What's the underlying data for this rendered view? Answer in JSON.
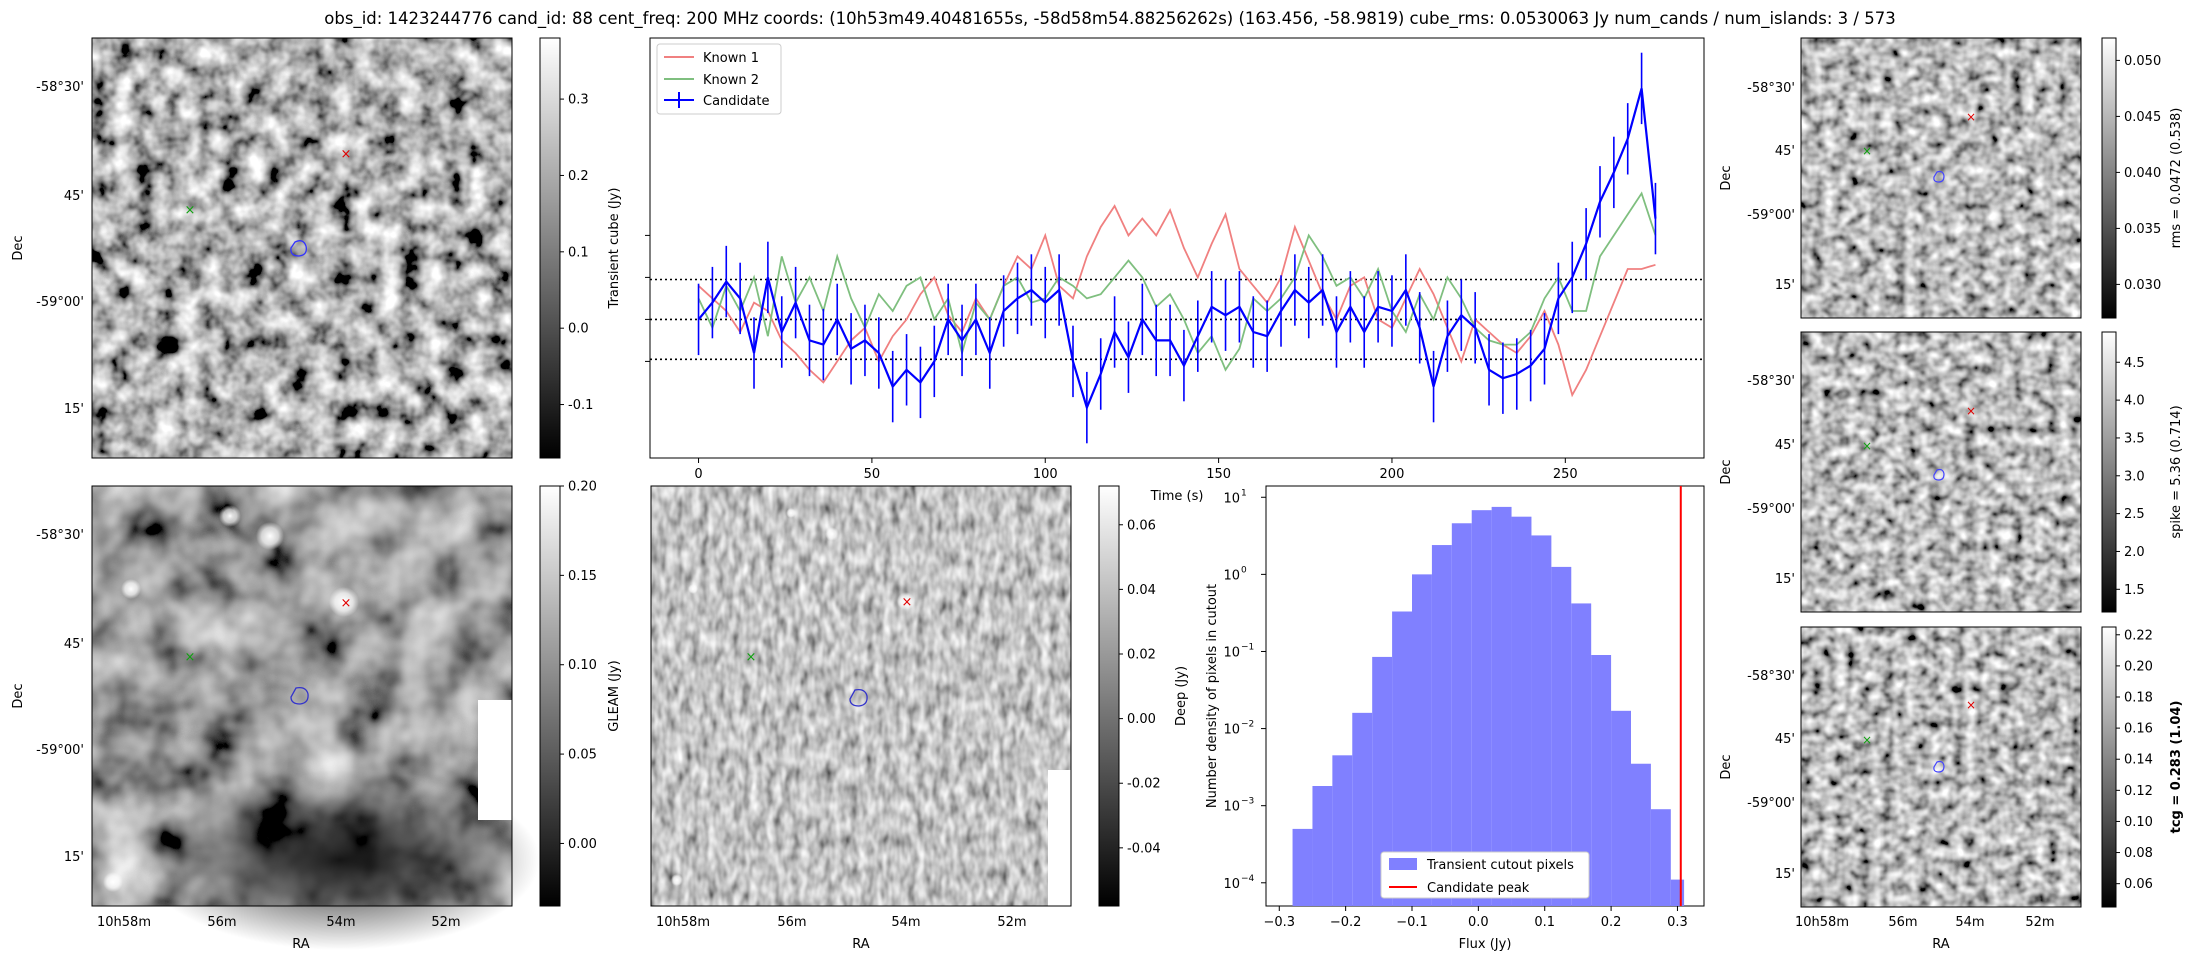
{
  "figure_title": "obs_id: 1423244776 cand_id: 88 cent_freq: 200 MHz coords: (10h53m49.40481655s, -58d58m54.88256262s) (163.456, -58.9819) cube_rms: 0.0530063 Jy num_cands / num_islands: 3 / 573",
  "ra_ticks": [
    "10h58m",
    "56m",
    "54m",
    "52m"
  ],
  "dec_ticks": [
    "-58°30'",
    "45'",
    "-59°00'",
    "15'"
  ],
  "ra_label": "RA",
  "dec_label": "Dec",
  "colors": {
    "candidate": "#0000ff",
    "known1": "#f08080",
    "known2": "#7fbf7f",
    "hist_fill": "#8080ff",
    "peak_line": "#ff0000"
  },
  "image_panels": [
    {
      "id": "transient",
      "colorbar_label": "Transient cube (Jy)",
      "colorbar_ticks": [
        "0.3",
        "0.2",
        "0.1",
        "0.0",
        "-0.1"
      ],
      "colorbar_range": [
        -0.17,
        0.38
      ]
    },
    {
      "id": "gleam",
      "colorbar_label": "GLEAM (Jy)",
      "colorbar_ticks": [
        "0.20",
        "0.15",
        "0.10",
        "0.05",
        "0.00"
      ],
      "colorbar_range": [
        -0.035,
        0.2
      ]
    },
    {
      "id": "deep",
      "colorbar_label": "Deep (Jy)",
      "colorbar_ticks": [
        "0.06",
        "0.04",
        "0.02",
        "0.00",
        "-0.02",
        "-0.04"
      ],
      "colorbar_range": [
        -0.058,
        0.072
      ]
    },
    {
      "id": "rms",
      "colorbar_label": "rms = 0.0472 (0.538)",
      "colorbar_ticks": [
        "0.050",
        "0.045",
        "0.040",
        "0.035",
        "0.030"
      ],
      "colorbar_range": [
        0.027,
        0.052
      ]
    },
    {
      "id": "spike",
      "colorbar_label": "spike = 5.36 (0.714)",
      "colorbar_ticks": [
        "4.5",
        "4.0",
        "3.5",
        "3.0",
        "2.5",
        "2.0",
        "1.5"
      ],
      "colorbar_range": [
        1.2,
        4.9
      ]
    },
    {
      "id": "tcg",
      "colorbar_label": "tcg = 0.283 (1.04)",
      "colorbar_ticks": [
        "0.22",
        "0.20",
        "0.18",
        "0.16",
        "0.14",
        "0.12",
        "0.10",
        "0.08",
        "0.06"
      ],
      "colorbar_range": [
        0.045,
        0.225
      ]
    }
  ],
  "chart_data": [
    {
      "type": "line",
      "xlabel": "Time (s)",
      "xlim": [
        -14,
        290
      ],
      "ylim": [
        -0.33,
        0.67
      ],
      "x_ticks": [
        0,
        50,
        100,
        150,
        200,
        250
      ],
      "reference_lines": [
        0.0,
        0.095,
        -0.095
      ],
      "legend": [
        "Known 1",
        "Known 2",
        "Candidate"
      ],
      "legend_location": "upper left",
      "series": [
        {
          "name": "Known 1",
          "x": [
            0,
            4,
            8,
            12,
            16,
            20,
            24,
            28,
            32,
            36,
            40,
            44,
            48,
            52,
            56,
            60,
            64,
            68,
            72,
            76,
            80,
            84,
            88,
            92,
            96,
            100,
            104,
            108,
            112,
            116,
            120,
            124,
            128,
            132,
            136,
            140,
            144,
            148,
            152,
            156,
            160,
            164,
            168,
            172,
            176,
            180,
            184,
            188,
            192,
            196,
            200,
            204,
            208,
            212,
            216,
            220,
            224,
            228,
            232,
            236,
            240,
            244,
            248,
            252,
            256,
            260,
            264,
            268,
            272,
            276
          ],
          "values": [
            0.08,
            0.05,
            0.02,
            -0.03,
            0.04,
            0.02,
            -0.05,
            -0.08,
            -0.12,
            -0.15,
            -0.1,
            -0.05,
            -0.02,
            -0.1,
            -0.04,
            0.0,
            0.06,
            0.1,
            0.01,
            -0.03,
            0.05,
            0.0,
            0.08,
            0.15,
            0.12,
            0.2,
            0.08,
            0.05,
            0.15,
            0.22,
            0.27,
            0.2,
            0.24,
            0.2,
            0.26,
            0.17,
            0.1,
            0.18,
            0.25,
            0.12,
            0.08,
            0.04,
            0.1,
            0.22,
            0.14,
            0.06,
            0.0,
            0.08,
            0.1,
            0.0,
            -0.02,
            0.05,
            0.12,
            0.06,
            -0.02,
            -0.1,
            0.0,
            -0.03,
            -0.06,
            -0.08,
            -0.04,
            0.02,
            -0.06,
            -0.18,
            -0.12,
            -0.04,
            0.04,
            0.12,
            0.12,
            0.13
          ]
        },
        {
          "name": "Known 2",
          "x": [
            0,
            4,
            8,
            12,
            16,
            20,
            24,
            28,
            32,
            36,
            40,
            44,
            48,
            52,
            56,
            60,
            64,
            68,
            72,
            76,
            80,
            84,
            88,
            92,
            96,
            100,
            104,
            108,
            112,
            116,
            120,
            124,
            128,
            132,
            136,
            140,
            144,
            148,
            152,
            156,
            160,
            164,
            168,
            172,
            176,
            180,
            184,
            188,
            192,
            196,
            200,
            204,
            208,
            212,
            216,
            220,
            224,
            228,
            232,
            236,
            240,
            244,
            248,
            252,
            256,
            260,
            264,
            268,
            272,
            276
          ],
          "values": [
            0.05,
            -0.02,
            0.08,
            0.02,
            0.1,
            -0.04,
            0.15,
            0.04,
            0.1,
            0.02,
            0.15,
            0.05,
            -0.02,
            0.06,
            0.02,
            0.08,
            0.1,
            0.0,
            0.05,
            -0.08,
            0.04,
            0.0,
            0.08,
            0.1,
            0.04,
            0.05,
            0.1,
            0.08,
            0.05,
            0.06,
            0.1,
            0.14,
            0.1,
            0.03,
            0.06,
            0.0,
            -0.08,
            -0.04,
            -0.12,
            -0.07,
            0.05,
            0.02,
            0.05,
            0.1,
            0.2,
            0.15,
            0.08,
            0.1,
            0.05,
            0.12,
            0.02,
            -0.03,
            0.06,
            0.0,
            0.1,
            0.05,
            -0.02,
            -0.05,
            -0.06,
            -0.06,
            -0.03,
            0.05,
            0.1,
            0.02,
            0.02,
            0.15,
            0.2,
            0.25,
            0.3,
            0.2
          ]
        },
        {
          "name": "Candidate",
          "x": [
            0,
            4,
            8,
            12,
            16,
            20,
            24,
            28,
            32,
            36,
            40,
            44,
            48,
            52,
            56,
            60,
            64,
            68,
            72,
            76,
            80,
            84,
            88,
            92,
            96,
            100,
            104,
            108,
            112,
            116,
            120,
            124,
            128,
            132,
            136,
            140,
            144,
            148,
            152,
            156,
            160,
            164,
            168,
            172,
            176,
            180,
            184,
            188,
            192,
            196,
            200,
            204,
            208,
            212,
            216,
            220,
            224,
            228,
            232,
            236,
            240,
            244,
            248,
            252,
            256,
            260,
            264,
            268,
            272,
            276
          ],
          "values": [
            0.0,
            0.04,
            0.09,
            0.05,
            -0.08,
            0.1,
            -0.03,
            0.04,
            -0.05,
            -0.06,
            0.0,
            -0.07,
            -0.05,
            -0.08,
            -0.16,
            -0.12,
            -0.15,
            -0.1,
            0.0,
            -0.05,
            0.0,
            -0.08,
            0.02,
            0.05,
            0.07,
            0.04,
            0.07,
            -0.1,
            -0.21,
            -0.13,
            -0.03,
            -0.09,
            0.0,
            -0.05,
            -0.05,
            -0.11,
            -0.04,
            0.03,
            0.01,
            0.03,
            -0.03,
            -0.04,
            0.02,
            0.07,
            0.04,
            0.07,
            -0.03,
            0.03,
            -0.03,
            0.03,
            0.02,
            0.07,
            -0.02,
            -0.16,
            -0.04,
            0.01,
            -0.02,
            -0.12,
            -0.14,
            -0.13,
            -0.11,
            -0.07,
            0.05,
            0.1,
            0.18,
            0.28,
            0.35,
            0.43,
            0.55,
            0.24
          ],
          "errors": 0.085
        }
      ]
    },
    {
      "type": "bar",
      "title": "",
      "xlabel": "Flux (Jy)",
      "ylabel": "Number density of pixels in cutout",
      "y_scale": "log",
      "xlim": [
        -0.32,
        0.34
      ],
      "ylim": [
        5e-05,
        14
      ],
      "x_ticks": [
        -0.3,
        -0.2,
        -0.1,
        0.0,
        0.1,
        0.2,
        0.3
      ],
      "y_ticks": [
        "10^-4",
        "10^-3",
        "10^-2",
        "10^-1",
        "10^0",
        "10^1"
      ],
      "legend": [
        "Transient cutout pixels",
        "Candidate peak"
      ],
      "legend_location": "lower center",
      "bin_edges": [
        -0.28,
        -0.25,
        -0.22,
        -0.19,
        -0.16,
        -0.13,
        -0.1,
        -0.07,
        -0.04,
        -0.01,
        0.02,
        0.05,
        0.08,
        0.11,
        0.14,
        0.17,
        0.2,
        0.23,
        0.26,
        0.29,
        0.31
      ],
      "values": [
        0.0005,
        0.0018,
        0.0045,
        0.016,
        0.085,
        0.33,
        1.0,
        2.4,
        4.6,
        6.8,
        7.5,
        5.6,
        3.2,
        1.25,
        0.42,
        0.09,
        0.017,
        0.0035,
        0.0009,
        0.00011
      ],
      "candidate_peak": 0.305
    }
  ]
}
